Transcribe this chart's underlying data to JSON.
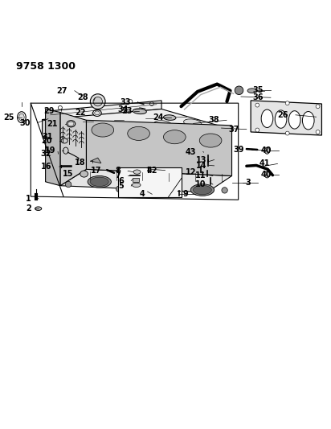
{
  "title": "9758 1300",
  "bg_color": "#ffffff",
  "line_color": "#000000",
  "text_color": "#000000",
  "title_fontsize": 9,
  "label_fontsize": 7
}
